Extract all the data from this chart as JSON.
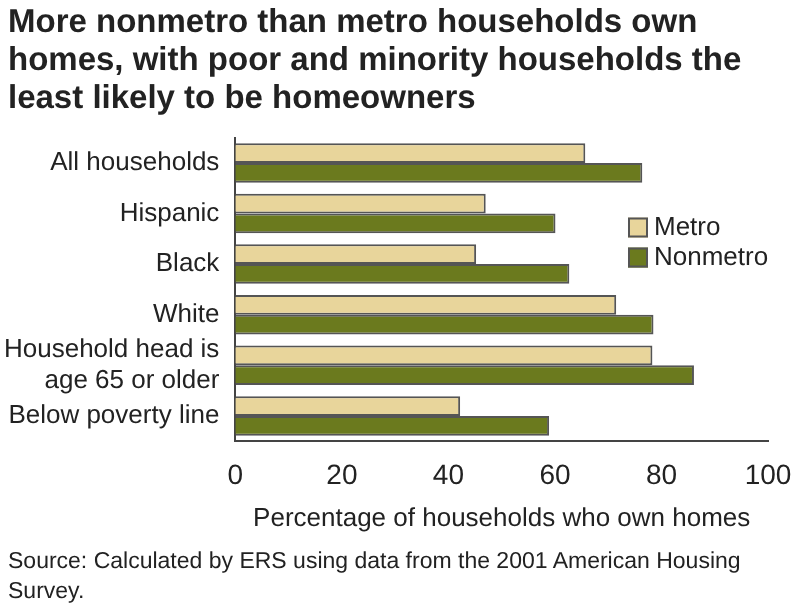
{
  "chart_data": {
    "type": "bar",
    "orientation": "horizontal",
    "title": "More nonmetro than metro households own homes, with poor and minority households the least likely to be homeowners",
    "xlabel": "Percentage of households who own homes",
    "categories": [
      "All households",
      "Hispanic",
      "Black",
      "White",
      "Household head is\nage 65 or older",
      "Below poverty line"
    ],
    "series": [
      {
        "name": "Metro",
        "color": "#e8d59b",
        "values": [
          65.7,
          47.0,
          45.2,
          71.5,
          78.3,
          42.2
        ]
      },
      {
        "name": "Nonmetro",
        "color": "#6b7a1e",
        "values": [
          76.4,
          60.1,
          62.7,
          78.5,
          86.1,
          58.9
        ]
      }
    ],
    "xlim": [
      0,
      100
    ],
    "xticks": [
      0,
      20,
      40,
      60,
      80,
      100
    ],
    "grid": false,
    "legend": "right",
    "annotations": [
      "Source: Calculated by ERS using data from the 2001 American Housing Survey."
    ]
  }
}
